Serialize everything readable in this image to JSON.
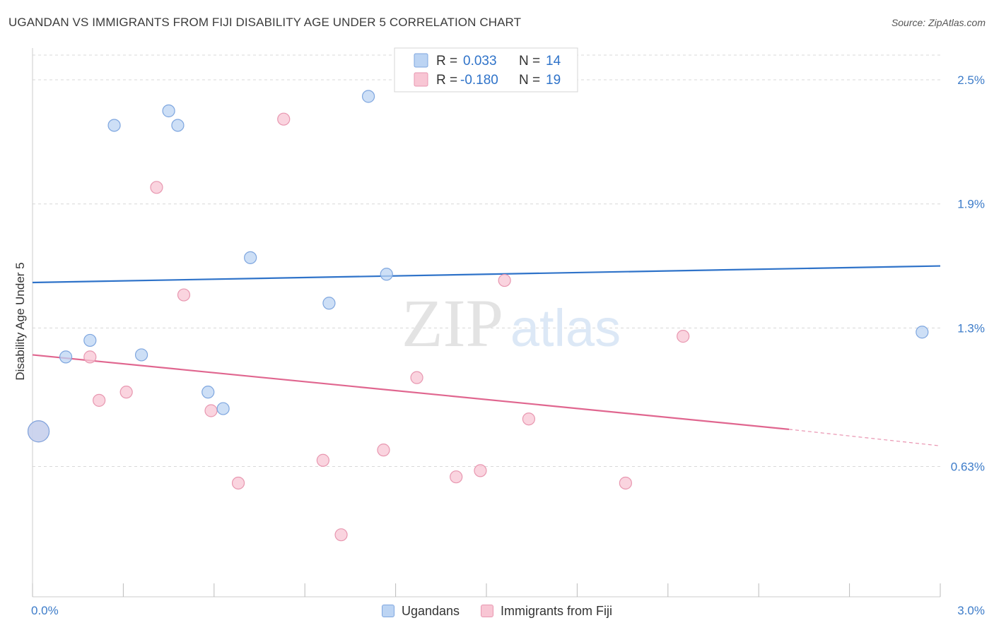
{
  "header": {
    "title": "UGANDAN VS IMMIGRANTS FROM FIJI DISABILITY AGE UNDER 5 CORRELATION CHART",
    "source": "Source: ZipAtlas.com"
  },
  "watermark": {
    "zip": "ZIP",
    "atlas": "atlas"
  },
  "colors": {
    "blue_fill": "#bcd4f3",
    "blue_stroke": "#7ea6df",
    "blue_line": "#2f73c9",
    "pink_fill": "#f8c6d4",
    "pink_stroke": "#e897b0",
    "pink_line": "#e0668f",
    "axis_text": "#3d7cc9",
    "grid": "#d8d8d8"
  },
  "legend_top": {
    "rows": [
      {
        "r_label": "R = ",
        "r_value": "0.033",
        "n_label": "N = ",
        "n_value": "14"
      },
      {
        "r_label": "R = ",
        "r_value": "-0.180",
        "n_label": "N = ",
        "n_value": "19"
      }
    ]
  },
  "chart_data": {
    "type": "scatter",
    "title": "UGANDAN VS IMMIGRANTS FROM FIJI DISABILITY AGE UNDER 5 CORRELATION CHART",
    "xlabel": "",
    "ylabel": "Disability Age Under 5",
    "xlim": [
      0,
      3.0
    ],
    "ylim": [
      0.0,
      2.63
    ],
    "x_tick_labels": [
      "0.0%",
      "3.0%"
    ],
    "y_ticks": [
      0.63,
      1.3,
      1.9,
      2.5
    ],
    "y_tick_labels": [
      "0.63%",
      "1.3%",
      "1.9%",
      "2.5%"
    ],
    "grid": "horizontal dashed",
    "legend_position": "top-center",
    "series": [
      {
        "name": "Ugandans",
        "color": "#bcd4f3",
        "points": [
          [
            0.02,
            0.8
          ],
          [
            0.11,
            1.16
          ],
          [
            0.19,
            1.24
          ],
          [
            0.27,
            2.28
          ],
          [
            0.36,
            1.17
          ],
          [
            0.45,
            2.35
          ],
          [
            0.48,
            2.28
          ],
          [
            0.58,
            0.99
          ],
          [
            0.63,
            0.91
          ],
          [
            0.72,
            1.64
          ],
          [
            0.98,
            1.42
          ],
          [
            1.11,
            2.42
          ],
          [
            1.17,
            1.56
          ],
          [
            2.94,
            1.28
          ]
        ],
        "trend": {
          "x": [
            0.0,
            3.0
          ],
          "y": [
            1.52,
            1.6
          ]
        }
      },
      {
        "name": "Immigrants from Fiji",
        "color": "#f8c6d4",
        "points": [
          [
            0.02,
            0.8
          ],
          [
            0.19,
            1.16
          ],
          [
            0.22,
            0.95
          ],
          [
            0.31,
            0.99
          ],
          [
            0.41,
            1.98
          ],
          [
            0.5,
            1.46
          ],
          [
            0.59,
            0.9
          ],
          [
            0.68,
            0.55
          ],
          [
            0.83,
            2.31
          ],
          [
            0.96,
            0.66
          ],
          [
            1.02,
            0.3
          ],
          [
            1.16,
            0.71
          ],
          [
            1.27,
            1.06
          ],
          [
            1.4,
            0.58
          ],
          [
            1.48,
            0.61
          ],
          [
            1.56,
            1.53
          ],
          [
            1.64,
            0.86
          ],
          [
            1.96,
            0.55
          ],
          [
            2.15,
            1.26
          ]
        ],
        "trend": {
          "x": [
            0.0,
            2.5
          ],
          "y": [
            1.17,
            0.81
          ]
        },
        "trend_extension": {
          "x": [
            2.5,
            3.0
          ],
          "y": [
            0.81,
            0.73
          ]
        }
      }
    ]
  }
}
